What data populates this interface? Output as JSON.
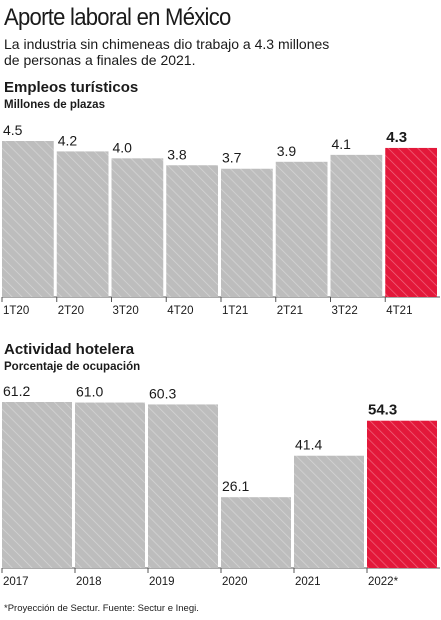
{
  "header": {
    "title": "Aporte laboral en México",
    "subtitle": "La industria sin chimeneas dio trabajo a 4.3 millones de personas a finales de 2021."
  },
  "colors": {
    "bar": "#bdbdbd",
    "highlight": "#e3183a",
    "text": "#1a1a1a"
  },
  "chart_data": [
    {
      "type": "bar",
      "title": "Empleos turísticos",
      "subtitle": "Millones de plazas",
      "categories": [
        "1T20",
        "2T20",
        "3T20",
        "4T20",
        "1T21",
        "2T21",
        "3T22",
        "4T21"
      ],
      "values": [
        4.5,
        4.2,
        4.0,
        3.8,
        3.7,
        3.9,
        4.1,
        4.3
      ],
      "value_labels": [
        "4.5",
        "4.2",
        "4.0",
        "3.8",
        "3.7",
        "3.9",
        "4.1",
        "4.3"
      ],
      "highlight_index": 7,
      "ylim": [
        0,
        4.5
      ],
      "grid": false,
      "legend": "none"
    },
    {
      "type": "bar",
      "title": "Actividad hotelera",
      "subtitle": "Porcentaje de ocupación",
      "categories": [
        "2017",
        "2018",
        "2019",
        "2020",
        "2021",
        "2022*"
      ],
      "values": [
        61.2,
        61.0,
        60.3,
        26.1,
        41.4,
        54.3
      ],
      "value_labels": [
        "61.2",
        "61.0",
        "60.3",
        "26.1",
        "41.4",
        "54.3"
      ],
      "highlight_index": 5,
      "ylim": [
        0,
        61.2
      ],
      "grid": false,
      "legend": "none"
    }
  ],
  "footnote": "*Proyección de Sectur. Fuente: Sectur e Inegi."
}
